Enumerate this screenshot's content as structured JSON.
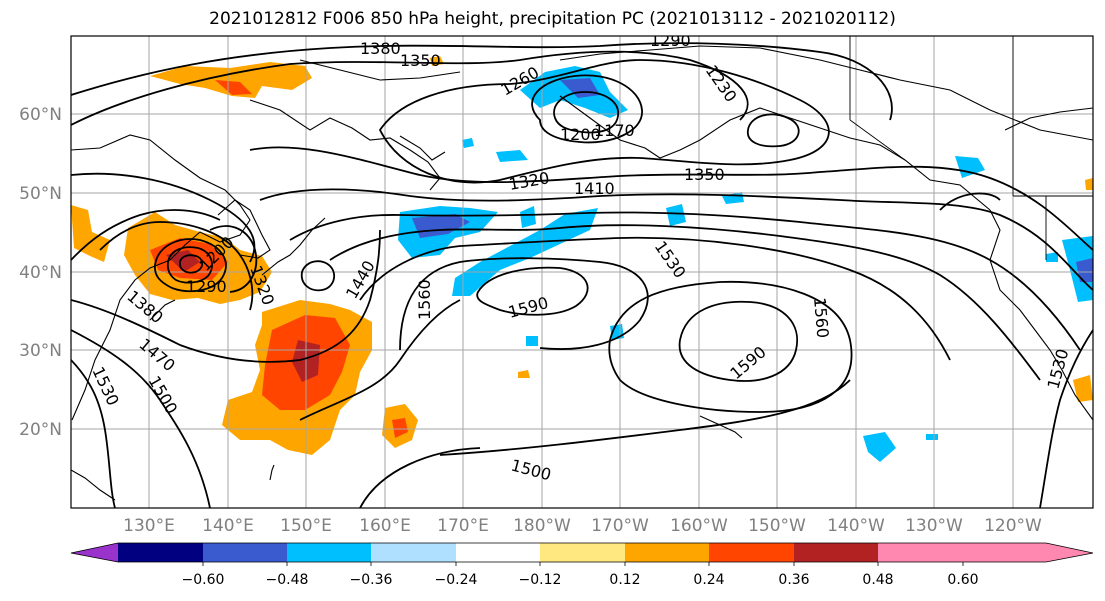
{
  "title": "2021012812 F006 850 hPa height, precipitation PC (2021013112 - 2021020112)",
  "lat_labels": [
    "60°N",
    "50°N",
    "40°N",
    "30°N",
    "20°N"
  ],
  "lon_labels": [
    "130°E",
    "140°E",
    "150°E",
    "160°E",
    "170°E",
    "180°W",
    "170°W",
    "160°W",
    "150°W",
    "140°W",
    "130°W",
    "120°W"
  ],
  "colorbar": {
    "colors": [
      "#9933cc",
      "#000080",
      "#3a5bd0",
      "#00bfff",
      "#b0e0ff",
      "#ffffff",
      "#ffe880",
      "#ffa500",
      "#ff4500",
      "#b22222",
      "#ff88b0"
    ],
    "ticks": [
      "−0.60",
      "−0.48",
      "−0.36",
      "−0.24",
      "−0.12",
      "0.12",
      "0.24",
      "0.36",
      "0.48",
      "0.60"
    ]
  },
  "contour_labels": [
    {
      "text": "1380"
    },
    {
      "text": "1350"
    },
    {
      "text": "1290"
    },
    {
      "text": "1260"
    },
    {
      "text": "1230"
    },
    {
      "text": "1200"
    },
    {
      "text": "1170"
    },
    {
      "text": "1320"
    },
    {
      "text": "1410"
    },
    {
      "text": "1350"
    },
    {
      "text": "1560"
    },
    {
      "text": "1590"
    },
    {
      "text": "1530"
    },
    {
      "text": "1560"
    },
    {
      "text": "1590"
    },
    {
      "text": "1500"
    },
    {
      "text": "1440"
    },
    {
      "text": "1530"
    },
    {
      "text": "1500"
    },
    {
      "text": "1470"
    },
    {
      "text": "1380"
    },
    {
      "text": "1290"
    },
    {
      "text": "1200"
    },
    {
      "text": "1320"
    },
    {
      "text": "1530"
    }
  ]
}
